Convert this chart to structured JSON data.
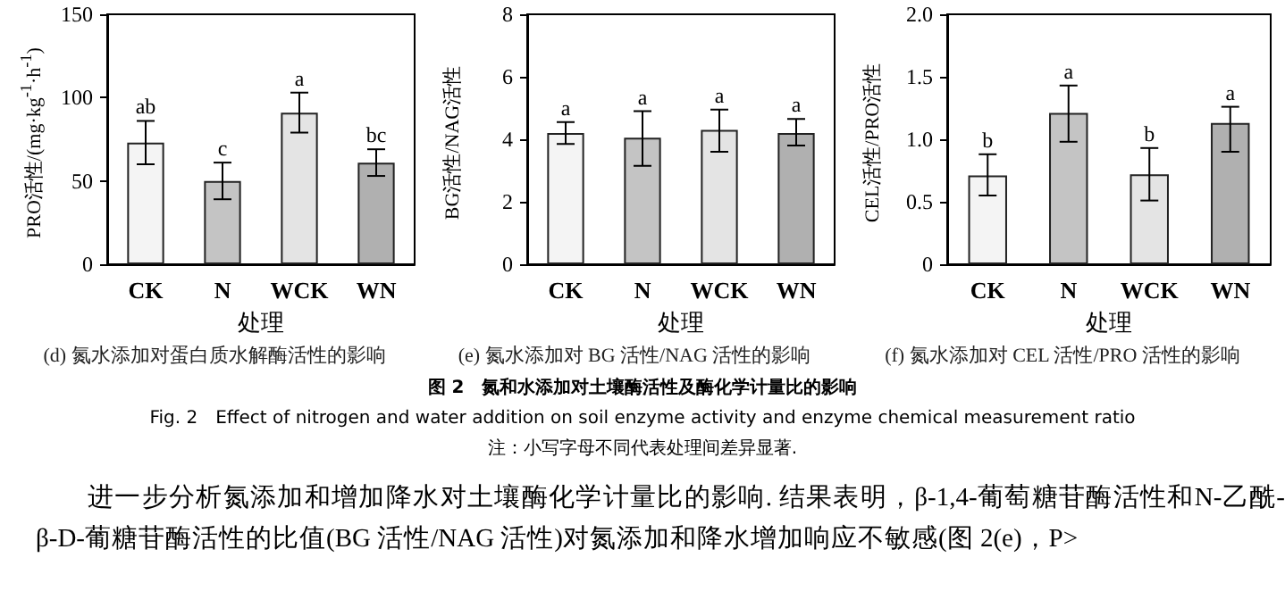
{
  "chart_data": [
    {
      "type": "bar",
      "title": "(d) 氮水添加对蛋白质水解酶活性的影响",
      "xlabel": "处理",
      "ylabel": "PRO活性/(mg·kg$^{-1}$·h$^{-1}$)",
      "categories": [
        "CK",
        "N",
        "WCK",
        "WN"
      ],
      "values": [
        73,
        50,
        91,
        61
      ],
      "colors": [
        "#f4f4f4",
        "#c4c4c4",
        "#e4e4e4",
        "#b0b0b0"
      ],
      "errors": [
        13,
        11,
        12,
        8
      ],
      "ylim": [
        0,
        150
      ],
      "yticks": [
        0,
        50,
        100,
        150
      ],
      "annotations": [
        {
          "text": "ab",
          "x": "CK",
          "y": 86
        },
        {
          "text": "c",
          "x": "N",
          "y": 61
        },
        {
          "text": "a",
          "x": "WCK",
          "y": 103
        },
        {
          "text": "bc",
          "x": "WN",
          "y": 69
        }
      ]
    },
    {
      "type": "bar",
      "title": "(e) 氮水添加对 BG 活性/NAG 活性的影响",
      "xlabel": "处理",
      "ylabel": "BG活性/NAG活性",
      "categories": [
        "CK",
        "N",
        "WCK",
        "WN"
      ],
      "values": [
        4.2,
        4.05,
        4.3,
        4.2
      ],
      "colors": [
        "#f4f4f4",
        "#c4c4c4",
        "#e4e4e4",
        "#b0b0b0"
      ],
      "errors": [
        0.35,
        [
          3.15,
          4.9
        ],
        [
          3.6,
          4.95
        ],
        [
          3.8,
          4.65
        ]
      ],
      "ylim": [
        0,
        8
      ],
      "yticks": [
        0,
        2,
        4,
        6,
        8
      ],
      "annotations": [
        {
          "text": "a",
          "x": "CK",
          "y": 4.55
        },
        {
          "text": "a",
          "x": "N",
          "y": 4.9
        },
        {
          "text": "a",
          "x": "WCK",
          "y": 4.95
        },
        {
          "text": "a",
          "x": "WN",
          "y": 4.65
        }
      ]
    },
    {
      "type": "bar",
      "title": "(f) 氮水添加对 CEL 活性/PRO 活性的影响",
      "xlabel": "处理",
      "ylabel": "CEL活性/PRO活性",
      "categories": [
        "CK",
        "N",
        "WCK",
        "WN"
      ],
      "values": [
        0.71,
        1.21,
        0.72,
        1.13
      ],
      "colors": [
        "#f4f4f4",
        "#c4c4c4",
        "#e4e4e4",
        "#b0b0b0"
      ],
      "errors": [
        [
          0.55,
          0.88
        ],
        [
          0.98,
          1.43
        ],
        [
          0.51,
          0.93
        ],
        [
          0.9,
          1.26
        ]
      ],
      "ylim": [
        0,
        2
      ],
      "yticks": [
        0,
        {
          "value": 0.5,
          "label": "0.5"
        },
        {
          "value": 1,
          "label": "1.0"
        },
        {
          "value": 1.5,
          "label": "1.5"
        },
        {
          "value": 2,
          "label": "2.0"
        }
      ],
      "annotations": [
        {
          "text": "b",
          "x": "CK",
          "y": 0.88
        },
        {
          "text": "a",
          "x": "N",
          "y": 1.43
        },
        {
          "text": "b",
          "x": "WCK",
          "y": 0.93
        },
        {
          "text": "a",
          "x": "WN",
          "y": 1.26
        }
      ]
    },
    {
      "type": "other",
      "annotations": [
        "图 2　氮和水添加对土壤酶活性及酶化学计量比的影响",
        "Fig. 2　Effect of nitrogen and water addition on soil enzyme activity and enzyme chemical measurement ratio",
        "注：小写字母不同代表处理间差异显著.",
        "进一步分析氮添加和增加降水对土壤酶化学计量比的影响. 结果表明，β-1,4-葡萄糖苷酶活性和N-乙酰-β-D-葡糖苷酶活性的比值(BG 活性/NAG 活性)对氮添加和降水增加响应不敏感(图 2(e)，P>"
      ]
    }
  ]
}
